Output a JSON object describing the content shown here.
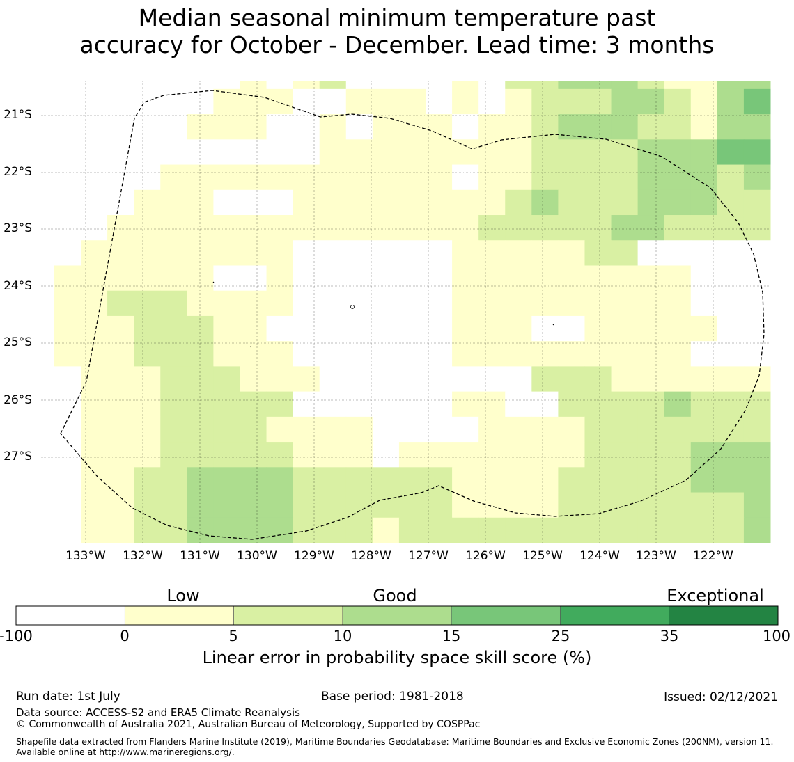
{
  "title": {
    "line1": "Median seasonal minimum temperature past",
    "line2": "accuracy for October - December. Lead time: 3 months"
  },
  "map": {
    "lat_labels": [
      "21°S",
      "22°S",
      "23°S",
      "24°S",
      "25°S",
      "26°S",
      "27°S"
    ],
    "lon_labels": [
      "133°W",
      "132°W",
      "131°W",
      "130°W",
      "129°W",
      "128°W",
      "127°W",
      "126°W",
      "125°W",
      "124°W",
      "123°W",
      "122°W"
    ],
    "grid_on": true,
    "boundary_style": "dashed",
    "cell_classes": [
      "0000000010120000102233321133",
      "0000000111001110101222332134",
      "0000001110010111011233322133",
      "0000000000011111111222233344",
      "0000011111111111011222233323",
      "0000111000111111112322233322",
      "0001111111111111122222332222",
      "0011111111000000111112200000",
      "0111111001000000111111111000",
      "0112221111000000111111111000",
      "0111222110000000111001111100",
      "0111222111000000111111111000",
      "0011122211100000000222111111",
      "0011122222000000110022223222",
      "0011122221111000011112222222",
      "0011122222111011111112222333",
      "0011223333222222111122222333",
      "0011223333222222111122222223",
      "0011223333222122222222222223"
    ],
    "colors": {
      "0": "#ffffff",
      "1": "#ffffcc",
      "2": "#d9f0a3",
      "3": "#addd8e",
      "4": "#78c679",
      "5": "#41ab5d",
      "6": "#238443"
    }
  },
  "colorbar": {
    "categories": [
      "Low",
      "Good",
      "Exceptional"
    ],
    "ticks": [
      "-100",
      "0",
      "5",
      "10",
      "15",
      "25",
      "35",
      "100"
    ],
    "colors": [
      "#ffffff",
      "#ffffcc",
      "#d9f0a3",
      "#addd8e",
      "#78c679",
      "#41ab5d",
      "#238443"
    ],
    "label": "Linear error in probability space skill score (%)"
  },
  "footer": {
    "run_date": "Run date: 1st July",
    "base_period": "Base period: 1981-2018",
    "issued": "Issued: 02/12/2021",
    "data_source": "Data source: ACCESS-S2 and ERA5 Climate Reanalysis",
    "copyright": "© Commonwealth of Australia 2021, Australian Bureau of Meteorology, Supported by COSPPac",
    "shapefile": "Shapefile data extracted from Flanders Marine Institute (2019), Maritime Boundaries Geodatabase: Maritime Boundaries and Exclusive Economic Zones (200NM), version 11. Available online at http://www.marineregions.org/."
  }
}
